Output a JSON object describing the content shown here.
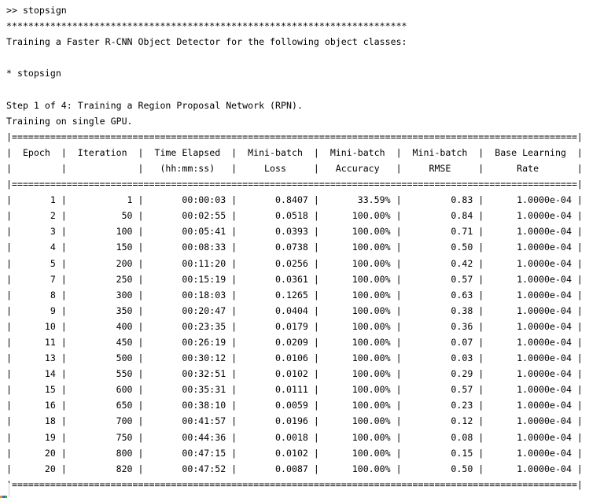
{
  "console": {
    "prompt_line": ">> stopsign",
    "banner_line": "*************************************************************************",
    "intro_line": "Training a Faster R-CNN Object Detector for the following object classes:",
    "class_line": "* stopsign",
    "step_line": "Step 1 of 4: Training a Region Proposal Network (RPN).",
    "gpu_line": "Training on single GPU."
  },
  "table": {
    "header_row1": [
      "Epoch",
      "Iteration",
      "Time Elapsed",
      "Mini-batch",
      "Mini-batch",
      "Mini-batch",
      "Base Learning"
    ],
    "header_row2": [
      "",
      "",
      "(hh:mm:ss)",
      "Loss",
      "Accuracy",
      "RMSE",
      "Rate"
    ],
    "rows": [
      [
        "1",
        "1",
        "00:00:03",
        "0.8407",
        "33.59%",
        "0.83",
        "1.0000e-04"
      ],
      [
        "2",
        "50",
        "00:02:55",
        "0.0518",
        "100.00%",
        "0.84",
        "1.0000e-04"
      ],
      [
        "3",
        "100",
        "00:05:41",
        "0.0393",
        "100.00%",
        "0.71",
        "1.0000e-04"
      ],
      [
        "4",
        "150",
        "00:08:33",
        "0.0738",
        "100.00%",
        "0.50",
        "1.0000e-04"
      ],
      [
        "5",
        "200",
        "00:11:20",
        "0.0256",
        "100.00%",
        "0.42",
        "1.0000e-04"
      ],
      [
        "7",
        "250",
        "00:15:19",
        "0.0361",
        "100.00%",
        "0.57",
        "1.0000e-04"
      ],
      [
        "8",
        "300",
        "00:18:03",
        "0.1265",
        "100.00%",
        "0.63",
        "1.0000e-04"
      ],
      [
        "9",
        "350",
        "00:20:47",
        "0.0404",
        "100.00%",
        "0.38",
        "1.0000e-04"
      ],
      [
        "10",
        "400",
        "00:23:35",
        "0.0179",
        "100.00%",
        "0.36",
        "1.0000e-04"
      ],
      [
        "11",
        "450",
        "00:26:19",
        "0.0209",
        "100.00%",
        "0.07",
        "1.0000e-04"
      ],
      [
        "13",
        "500",
        "00:30:12",
        "0.0106",
        "100.00%",
        "0.03",
        "1.0000e-04"
      ],
      [
        "14",
        "550",
        "00:32:51",
        "0.0102",
        "100.00%",
        "0.29",
        "1.0000e-04"
      ],
      [
        "15",
        "600",
        "00:35:31",
        "0.0111",
        "100.00%",
        "0.57",
        "1.0000e-04"
      ],
      [
        "16",
        "650",
        "00:38:10",
        "0.0059",
        "100.00%",
        "0.23",
        "1.0000e-04"
      ],
      [
        "18",
        "700",
        "00:41:57",
        "0.0196",
        "100.00%",
        "0.12",
        "1.0000e-04"
      ],
      [
        "19",
        "750",
        "00:44:36",
        "0.0018",
        "100.00%",
        "0.08",
        "1.0000e-04"
      ],
      [
        "20",
        "800",
        "00:47:15",
        "0.0102",
        "100.00%",
        "0.15",
        "1.0000e-04"
      ],
      [
        "20",
        "820",
        "00:47:52",
        "0.0087",
        "100.00%",
        "0.50",
        "1.0000e-04"
      ]
    ]
  },
  "colors": {
    "text": "#000000",
    "background": "#ffffff",
    "fx_icon_colors": [
      "#f28c28",
      "#2a6fce",
      "#35a845"
    ]
  }
}
